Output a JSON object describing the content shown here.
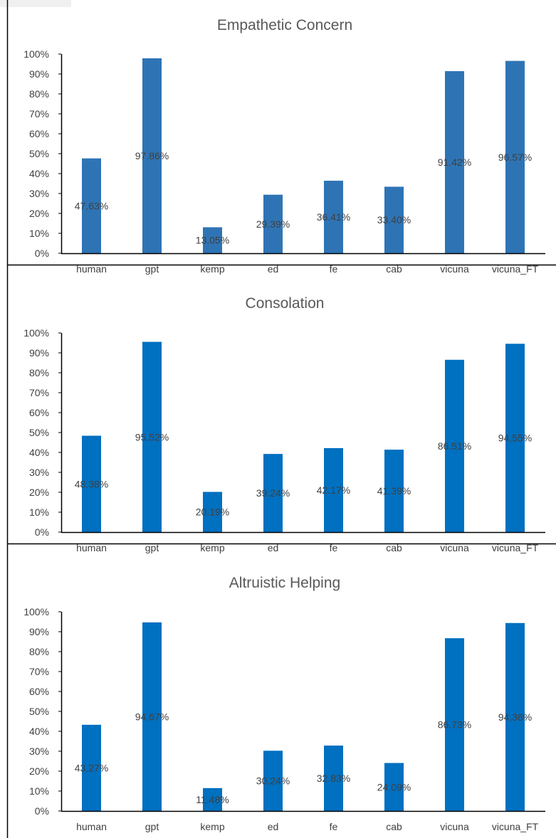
{
  "chart_data": [
    {
      "type": "bar",
      "title": "Empathetic Concern",
      "categories": [
        "human",
        "gpt",
        "kemp",
        "ed",
        "fe",
        "cab",
        "vicuna",
        "vicuna_FT"
      ],
      "values": [
        47.63,
        97.86,
        13.05,
        29.39,
        36.41,
        33.4,
        91.42,
        96.57
      ],
      "data_labels": [
        "47.63%",
        "97.86%",
        "13.05%",
        "29.39%",
        "36.41%",
        "33.40%",
        "91.42%",
        "96.57%"
      ],
      "ylim": [
        0,
        100
      ],
      "yticks": [
        "0%",
        "10%",
        "20%",
        "30%",
        "40%",
        "50%",
        "60%",
        "70%",
        "80%",
        "90%",
        "100%"
      ],
      "bar_color": "#2e74b5",
      "xlabel": "",
      "ylabel": "",
      "grid": false,
      "legend": "none"
    },
    {
      "type": "bar",
      "title": "Consolation",
      "categories": [
        "human",
        "gpt",
        "kemp",
        "ed",
        "fe",
        "cab",
        "vicuna",
        "vicuna_FT"
      ],
      "values": [
        48.38,
        95.52,
        20.19,
        39.24,
        42.17,
        41.39,
        86.51,
        94.55
      ],
      "data_labels": [
        "48.38%",
        "95.52%",
        "20.19%",
        "39.24%",
        "42.17%",
        "41.39%",
        "86.51%",
        "94.55%"
      ],
      "ylim": [
        0,
        100
      ],
      "yticks": [
        "0%",
        "10%",
        "20%",
        "30%",
        "40%",
        "50%",
        "60%",
        "70%",
        "80%",
        "90%",
        "100%"
      ],
      "bar_color": "#0070c0",
      "xlabel": "",
      "ylabel": "",
      "grid": false,
      "legend": "none"
    },
    {
      "type": "bar",
      "title": "Altruistic Helping",
      "categories": [
        "human",
        "gpt",
        "kemp",
        "ed",
        "fe",
        "cab",
        "vicuna",
        "vicuna_FT"
      ],
      "values": [
        43.27,
        94.67,
        11.48,
        30.24,
        32.83,
        24.09,
        86.73,
        94.36
      ],
      "data_labels": [
        "43.27%",
        "94.67%",
        "11.48%",
        "30.24%",
        "32.83%",
        "24.09%",
        "86.73%",
        "94.36%"
      ],
      "ylim": [
        0,
        100
      ],
      "yticks": [
        "0%",
        "10%",
        "20%",
        "30%",
        "40%",
        "50%",
        "60%",
        "70%",
        "80%",
        "90%",
        "100%"
      ],
      "bar_color": "#0070c0",
      "xlabel": "",
      "ylabel": "",
      "grid": false,
      "legend": "none"
    }
  ]
}
